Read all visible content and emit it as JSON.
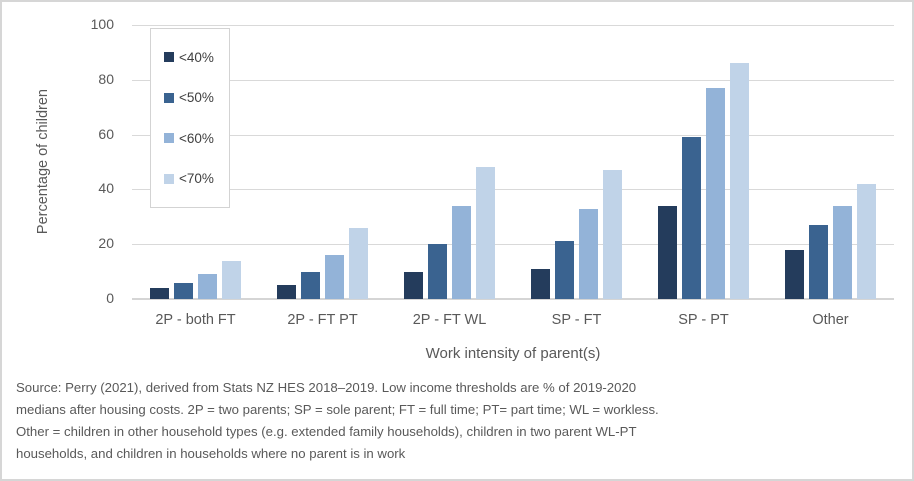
{
  "chart_data": {
    "type": "bar",
    "title": "",
    "categories": [
      "2P - both FT",
      "2P - FT PT",
      "2P - FT WL",
      "SP - FT",
      "SP - PT",
      "Other"
    ],
    "series": [
      {
        "name": "<40%",
        "color": "#243c5c",
        "values": [
          4,
          5,
          10,
          11,
          34,
          18
        ]
      },
      {
        "name": "<50%",
        "color": "#3a6390",
        "values": [
          6,
          10,
          20,
          21,
          59,
          27
        ]
      },
      {
        "name": "<60%",
        "color": "#93b3d8",
        "values": [
          9,
          16,
          34,
          33,
          77,
          34
        ]
      },
      {
        "name": "<70%",
        "color": "#c0d3e8",
        "values": [
          14,
          26,
          48,
          47,
          86,
          42
        ]
      }
    ],
    "xlabel": "Work intensity of parent(s)",
    "ylabel": "Percentage of children",
    "ylim": [
      0,
      100
    ],
    "yticks": [
      0,
      20,
      40,
      60,
      80,
      100
    ],
    "grid": true,
    "legend_position": "upper-left-inside"
  },
  "source_note": {
    "lines": [
      "Source: Perry (2021), derived from Stats NZ HES 2018–2019. Low income thresholds are % of 2019-2020",
      "medians after housing costs. 2P = two parents; SP = sole parent; FT = full time; PT= part time; WL = workless.",
      "Other = children in  other household types (e.g. extended family households), children in two parent WL-PT",
      "households,  and children in households where no parent is in work"
    ]
  },
  "colors": {
    "gridline": "#d9d9d9",
    "axis_text": "#595959",
    "legend_text": "#3f3f3f",
    "figure_border": "#d6d6d6"
  }
}
